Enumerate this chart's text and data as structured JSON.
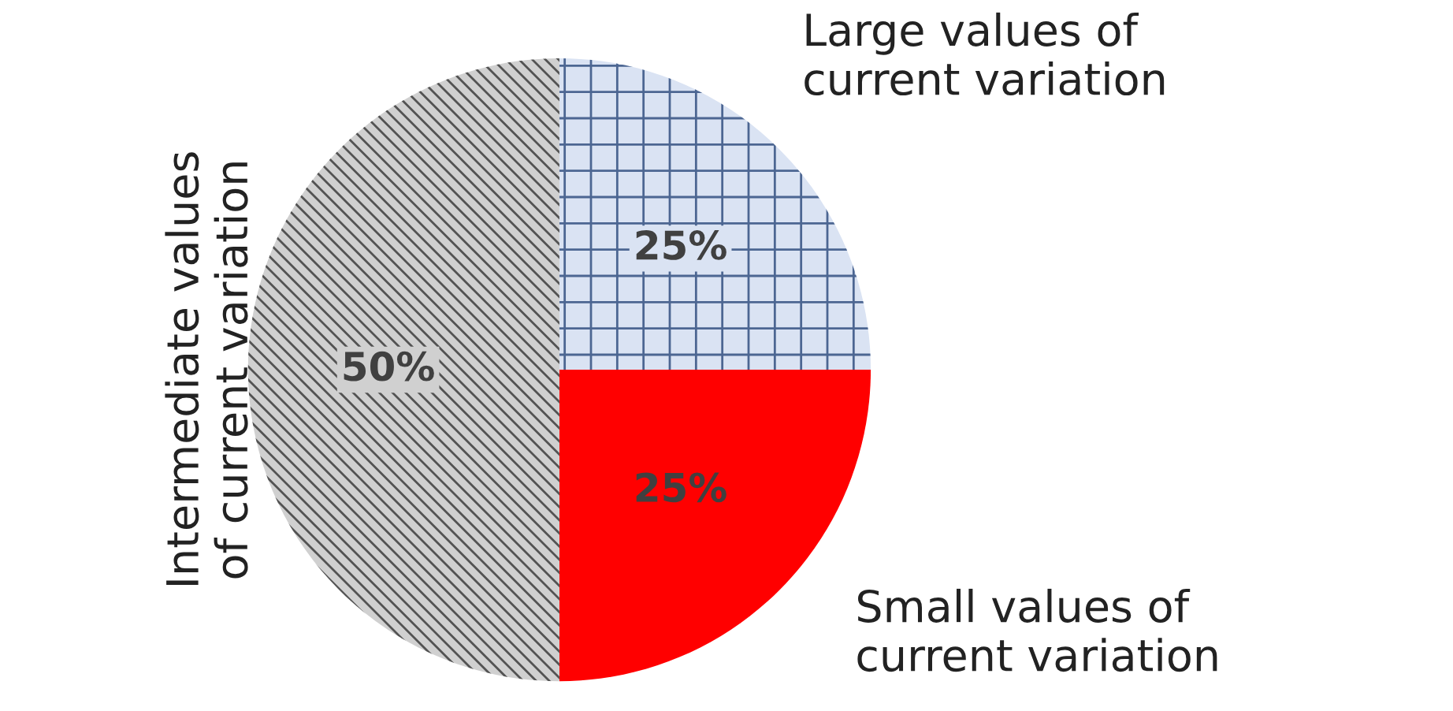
{
  "chart_data": {
    "type": "pie",
    "categories": [
      "Large values of\ncurrent variation",
      "Small values of\ncurrent variation",
      "Intermediate values\nof current variation"
    ],
    "values": [
      25,
      25,
      50
    ],
    "colors": [
      "#dae3f3",
      "#ff0000",
      "#d0d0d0"
    ],
    "value_labels": [
      "25%",
      "25%",
      "50%"
    ]
  }
}
